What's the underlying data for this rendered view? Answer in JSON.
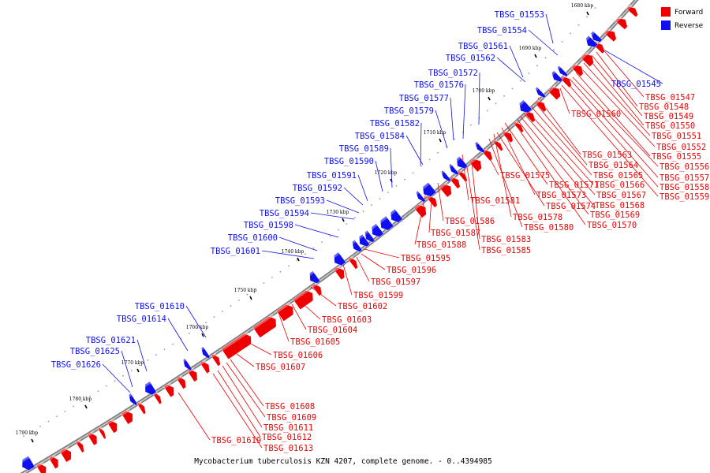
{
  "legend": {
    "forward": {
      "label": "Forward",
      "color": "#ee0000"
    },
    "reverse": {
      "label": "Reverse",
      "color": "#1010ee"
    }
  },
  "caption": "Mycobacterium tuberculosis KZN 4207, complete genome. - 0..4394985",
  "ticks": [
    "1680 kbp",
    "1690 kbp",
    "1700 kbp",
    "1710 kbp",
    "1720 kbp",
    "1730 kbp",
    "1740 kbp",
    "1750 kbp",
    "1760 kbp",
    "1770 kbp",
    "1780 kbp",
    "1790 kbp"
  ],
  "reverse_labels": [
    "TBSG_01553",
    "TBSG_01554",
    "TBSG_01561",
    "TBSG_01562",
    "TBSG_01572",
    "TBSG_01576",
    "TBSG_01577",
    "TBSG_01579",
    "TBSG_01582",
    "TBSG_01584",
    "TBSG_01589",
    "TBSG_01590",
    "TBSG_01591",
    "TBSG_01592",
    "TBSG_01593",
    "TBSG_01594",
    "TBSG_01598",
    "TBSG_01600",
    "TBSG_01601",
    "TBSG_01610",
    "TBSG_01614",
    "TBSG_01621",
    "TBSG_01625",
    "TBSG_01626",
    "TBSG_01545"
  ],
  "forward_labels": [
    "TBSG_01547",
    "TBSG_01548",
    "TBSG_01549",
    "TBSG_01550",
    "TBSG_01551",
    "TBSG_01552",
    "TBSG_01555",
    "TBSG_01556",
    "TBSG_01557",
    "TBSG_01558",
    "TBSG_01559",
    "TBSG_01560",
    "TBSG_01563",
    "TBSG_01564",
    "TBSG_01565",
    "TBSG_01566",
    "TBSG_01567",
    "TBSG_01568",
    "TBSG_01569",
    "TBSG_01570",
    "TBSG_01575",
    "TBSG_01571",
    "TBSG_01573",
    "TBSG_01574",
    "TBSG_01578",
    "TBSG_01580",
    "TBSG_01581",
    "TBSG_01586",
    "TBSG_01587",
    "TBSG_01588",
    "TBSG_01583",
    "TBSG_01585",
    "TBSG_01595",
    "TBSG_01596",
    "TBSG_01597",
    "TBSG_01599",
    "TBSG_01602",
    "TBSG_01603",
    "TBSG_01604",
    "TBSG_01605",
    "TBSG_01606",
    "TBSG_01607",
    "TBSG_01608",
    "TBSG_01609",
    "TBSG_01611",
    "TBSG_01612",
    "TBSG_01613",
    "TBSG_01619"
  ]
}
